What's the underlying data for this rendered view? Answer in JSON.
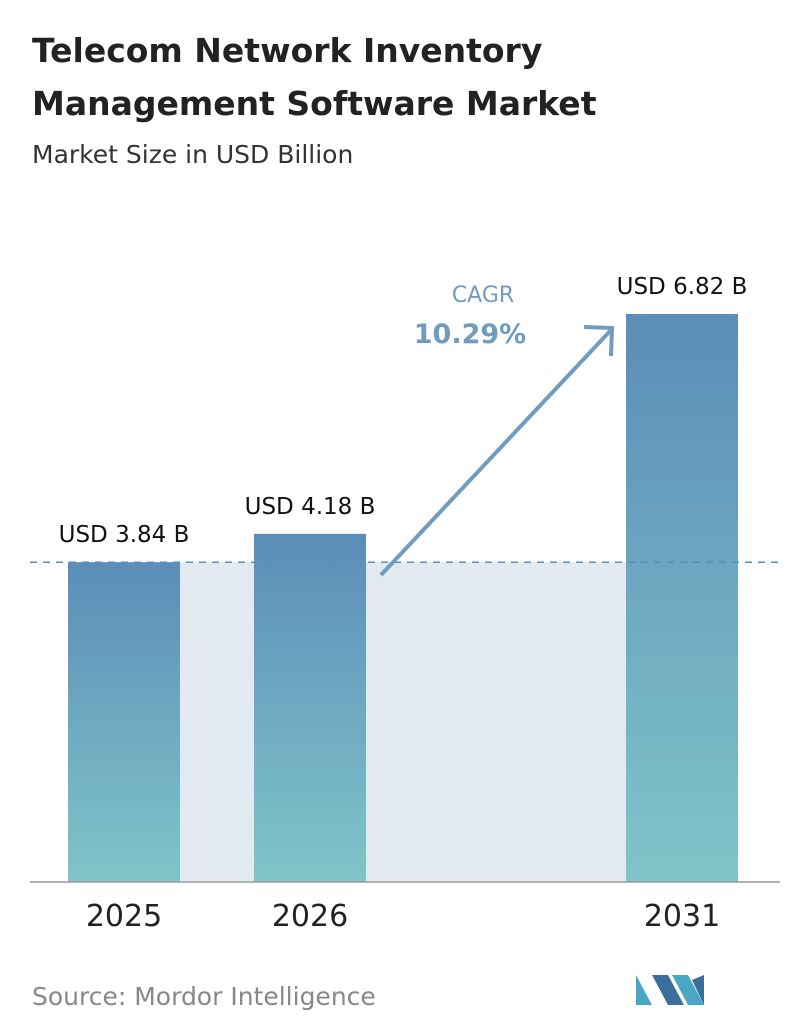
{
  "chart_data": {
    "type": "bar",
    "title_lines": [
      "Telecom Network Inventory",
      "Management Software Market"
    ],
    "subtitle": "Market Size in USD Billion",
    "categories": [
      "2025",
      "2026",
      "2031"
    ],
    "values": [
      3.84,
      4.18,
      6.82
    ],
    "value_labels": [
      "USD 3.84 B",
      "USD 4.18 B",
      "USD 6.82 B"
    ],
    "colors": [
      "#5b8db8",
      "#80c5c9"
    ],
    "annotation": {
      "label": "CAGR",
      "value": "10.29%"
    },
    "source": "Source: Mordor Intelligence"
  }
}
